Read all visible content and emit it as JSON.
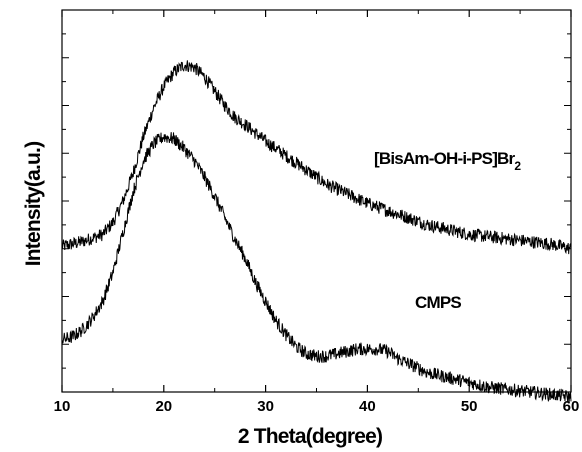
{
  "chart_data": {
    "type": "line",
    "xlabel": "2 Theta(degree)",
    "ylabel": "Intensity(a.u.)",
    "xlim": [
      10,
      60
    ],
    "ylim": [
      0,
      1.6
    ],
    "x_ticks": [
      "10",
      "20",
      "30",
      "40",
      "50",
      "60"
    ],
    "y_tick_labels": "none",
    "grid": false,
    "legend": "none",
    "series": [
      {
        "name": "[BisAm-OH-i-PS]Br2",
        "label_main": "[BisAm-OH-i-PS]Br",
        "label_sub": "2",
        "color": "#000000",
        "x": [
          10,
          12,
          14,
          15,
          16,
          17,
          18,
          19,
          20,
          21,
          22,
          23,
          24,
          25,
          26,
          27,
          28,
          30,
          32,
          34,
          36,
          38,
          40,
          42,
          44,
          46,
          48,
          50,
          52,
          54,
          56,
          58,
          60
        ],
        "y": [
          0.61,
          0.63,
          0.66,
          0.71,
          0.8,
          0.92,
          1.07,
          1.19,
          1.28,
          1.34,
          1.37,
          1.36,
          1.32,
          1.26,
          1.2,
          1.15,
          1.12,
          1.05,
          0.99,
          0.93,
          0.87,
          0.83,
          0.79,
          0.76,
          0.73,
          0.7,
          0.68,
          0.66,
          0.65,
          0.64,
          0.63,
          0.62,
          0.6
        ]
      },
      {
        "name": "CMPS",
        "label_main": "CMPS",
        "label_sub": "",
        "color": "#000000",
        "x": [
          10,
          11,
          12,
          13,
          14,
          15,
          16,
          17,
          18,
          19,
          20,
          21,
          22,
          23,
          24,
          25,
          26,
          27,
          28,
          29,
          30,
          31,
          32,
          33,
          34,
          35,
          36,
          37,
          38,
          39,
          40,
          41,
          42,
          43,
          44,
          45,
          46,
          48,
          50,
          52,
          54,
          56,
          58,
          60
        ],
        "y": [
          0.22,
          0.23,
          0.26,
          0.31,
          0.38,
          0.5,
          0.67,
          0.84,
          0.97,
          1.04,
          1.07,
          1.06,
          1.02,
          0.97,
          0.9,
          0.82,
          0.73,
          0.64,
          0.56,
          0.46,
          0.38,
          0.3,
          0.24,
          0.19,
          0.16,
          0.15,
          0.15,
          0.16,
          0.17,
          0.18,
          0.18,
          0.18,
          0.17,
          0.14,
          0.12,
          0.1,
          0.08,
          0.06,
          0.04,
          0.02,
          0.01,
          0.0,
          -0.01,
          -0.02
        ]
      }
    ]
  }
}
